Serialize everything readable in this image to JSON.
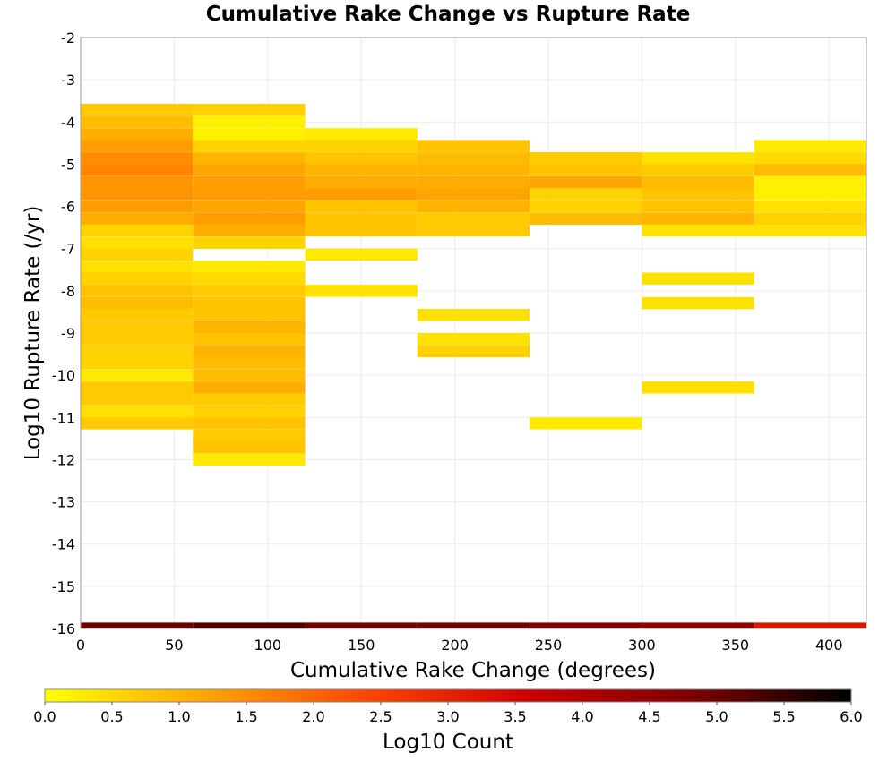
{
  "chart_data": {
    "type": "heatmap",
    "title": "Cumulative Rake Change vs Rupture Rate",
    "xlabel": "Cumulative Rake Change (degrees)",
    "ylabel": "Log10 Rupture Rate (/yr)",
    "xlim": [
      0,
      420
    ],
    "ylim": [
      -16,
      -2
    ],
    "x_ticks": [
      0,
      50,
      100,
      150,
      200,
      250,
      300,
      350,
      400
    ],
    "y_ticks": [
      -2,
      -3,
      -4,
      -5,
      -6,
      -7,
      -8,
      -9,
      -10,
      -11,
      -12,
      -13,
      -14,
      -15,
      -16
    ],
    "x_bin_width": 60,
    "y_bin_height": 0.286,
    "grid": true,
    "colorbar": {
      "label": "Log10 Count",
      "min": 0.0,
      "max": 6.0,
      "ticks": [
        "0.0",
        "0.5",
        "1.0",
        "1.5",
        "2.0",
        "2.5",
        "3.0",
        "3.5",
        "4.0",
        "4.5",
        "5.0",
        "5.5",
        "6.0"
      ],
      "colors": [
        "#ffff00",
        "#ffa500",
        "#ff4500",
        "#cc0000",
        "#800000",
        "#000000"
      ]
    },
    "columns": [
      {
        "x_start": 0,
        "cells": [
          {
            "y": -3.71,
            "v": 0.7
          },
          {
            "y": -4.0,
            "v": 0.9
          },
          {
            "y": -4.29,
            "v": 1.1
          },
          {
            "y": -4.57,
            "v": 1.3
          },
          {
            "y": -4.86,
            "v": 1.5
          },
          {
            "y": -5.14,
            "v": 1.6
          },
          {
            "y": -5.43,
            "v": 1.4
          },
          {
            "y": -5.71,
            "v": 1.4
          },
          {
            "y": -6.0,
            "v": 1.3
          },
          {
            "y": -6.29,
            "v": 1.1
          },
          {
            "y": -6.57,
            "v": 0.6
          },
          {
            "y": -6.86,
            "v": 0.4
          },
          {
            "y": -7.14,
            "v": 0.6
          },
          {
            "y": -7.43,
            "v": 0.4
          },
          {
            "y": -7.71,
            "v": 0.6
          },
          {
            "y": -8.0,
            "v": 0.8
          },
          {
            "y": -8.29,
            "v": 0.9
          },
          {
            "y": -8.57,
            "v": 0.7
          },
          {
            "y": -8.86,
            "v": 0.7
          },
          {
            "y": -9.14,
            "v": 0.7
          },
          {
            "y": -9.43,
            "v": 0.6
          },
          {
            "y": -9.71,
            "v": 0.6
          },
          {
            "y": -10.0,
            "v": 0.3
          },
          {
            "y": -10.29,
            "v": 0.7
          },
          {
            "y": -10.57,
            "v": 0.7
          },
          {
            "y": -10.86,
            "v": 0.4
          },
          {
            "y": -11.14,
            "v": 0.7
          }
        ]
      },
      {
        "x_start": 60,
        "cells": [
          {
            "y": -3.71,
            "v": 0.6
          },
          {
            "y": -4.0,
            "v": 0.2
          },
          {
            "y": -4.29,
            "v": 0.2
          },
          {
            "y": -4.57,
            "v": 0.6
          },
          {
            "y": -4.86,
            "v": 1.0
          },
          {
            "y": -5.14,
            "v": 1.2
          },
          {
            "y": -5.43,
            "v": 1.3
          },
          {
            "y": -5.71,
            "v": 1.3
          },
          {
            "y": -6.0,
            "v": 1.2
          },
          {
            "y": -6.29,
            "v": 1.3
          },
          {
            "y": -6.57,
            "v": 1.1
          },
          {
            "y": -6.86,
            "v": 0.6
          },
          {
            "y": -7.43,
            "v": 0.3
          },
          {
            "y": -7.71,
            "v": 0.5
          },
          {
            "y": -8.0,
            "v": 0.7
          },
          {
            "y": -8.29,
            "v": 0.8
          },
          {
            "y": -8.57,
            "v": 0.8
          },
          {
            "y": -8.86,
            "v": 1.0
          },
          {
            "y": -9.14,
            "v": 0.8
          },
          {
            "y": -9.43,
            "v": 1.0
          },
          {
            "y": -9.71,
            "v": 0.9
          },
          {
            "y": -10.0,
            "v": 0.9
          },
          {
            "y": -10.29,
            "v": 1.1
          },
          {
            "y": -10.57,
            "v": 0.7
          },
          {
            "y": -10.86,
            "v": 0.6
          },
          {
            "y": -11.14,
            "v": 0.8
          },
          {
            "y": -11.43,
            "v": 0.7
          },
          {
            "y": -11.71,
            "v": 0.8
          },
          {
            "y": -12.0,
            "v": 0.3
          }
        ]
      },
      {
        "x_start": 120,
        "cells": [
          {
            "y": -4.29,
            "v": 0.3
          },
          {
            "y": -4.57,
            "v": 0.6
          },
          {
            "y": -4.86,
            "v": 0.8
          },
          {
            "y": -5.14,
            "v": 1.0
          },
          {
            "y": -5.43,
            "v": 1.1
          },
          {
            "y": -5.71,
            "v": 1.3
          },
          {
            "y": -6.0,
            "v": 0.8
          },
          {
            "y": -6.29,
            "v": 0.8
          },
          {
            "y": -6.57,
            "v": 0.8
          },
          {
            "y": -7.14,
            "v": 0.3
          },
          {
            "y": -8.0,
            "v": 0.4
          }
        ]
      },
      {
        "x_start": 180,
        "cells": [
          {
            "y": -4.57,
            "v": 0.8
          },
          {
            "y": -4.86,
            "v": 0.9
          },
          {
            "y": -5.14,
            "v": 1.0
          },
          {
            "y": -5.43,
            "v": 1.1
          },
          {
            "y": -5.71,
            "v": 1.2
          },
          {
            "y": -6.0,
            "v": 1.0
          },
          {
            "y": -6.29,
            "v": 0.7
          },
          {
            "y": -6.57,
            "v": 0.7
          },
          {
            "y": -8.57,
            "v": 0.4
          },
          {
            "y": -9.14,
            "v": 0.4
          },
          {
            "y": -9.43,
            "v": 0.6
          }
        ]
      },
      {
        "x_start": 240,
        "cells": [
          {
            "y": -4.86,
            "v": 0.7
          },
          {
            "y": -5.14,
            "v": 0.8
          },
          {
            "y": -5.43,
            "v": 1.2
          },
          {
            "y": -5.71,
            "v": 0.6
          },
          {
            "y": -6.0,
            "v": 0.6
          },
          {
            "y": -6.29,
            "v": 0.9
          },
          {
            "y": -11.14,
            "v": 0.3
          }
        ]
      },
      {
        "x_start": 300,
        "cells": [
          {
            "y": -4.86,
            "v": 0.4
          },
          {
            "y": -5.14,
            "v": 0.7
          },
          {
            "y": -5.43,
            "v": 0.9
          },
          {
            "y": -5.71,
            "v": 0.8
          },
          {
            "y": -6.0,
            "v": 0.8
          },
          {
            "y": -6.29,
            "v": 1.0
          },
          {
            "y": -6.57,
            "v": 0.4
          },
          {
            "y": -7.71,
            "v": 0.4
          },
          {
            "y": -8.29,
            "v": 0.4
          },
          {
            "y": -10.29,
            "v": 0.4
          }
        ]
      },
      {
        "x_start": 360,
        "cells": [
          {
            "y": -4.57,
            "v": 0.3
          },
          {
            "y": -4.86,
            "v": 0.5
          },
          {
            "y": -5.14,
            "v": 0.9
          },
          {
            "y": -5.43,
            "v": 0.2
          },
          {
            "y": -5.71,
            "v": 0.2
          },
          {
            "y": -6.0,
            "v": 0.4
          },
          {
            "y": -6.29,
            "v": 0.6
          },
          {
            "y": -6.57,
            "v": 0.4
          }
        ]
      }
    ],
    "bottom_row": {
      "y": -15.93,
      "cells": [
        {
          "x_start": 0,
          "v": 5.0
        },
        {
          "x_start": 60,
          "v": 5.2
        },
        {
          "x_start": 120,
          "v": 4.9
        },
        {
          "x_start": 180,
          "v": 4.9
        },
        {
          "x_start": 240,
          "v": 4.7
        },
        {
          "x_start": 300,
          "v": 4.5
        },
        {
          "x_start": 360,
          "v": 3.2
        }
      ]
    }
  }
}
